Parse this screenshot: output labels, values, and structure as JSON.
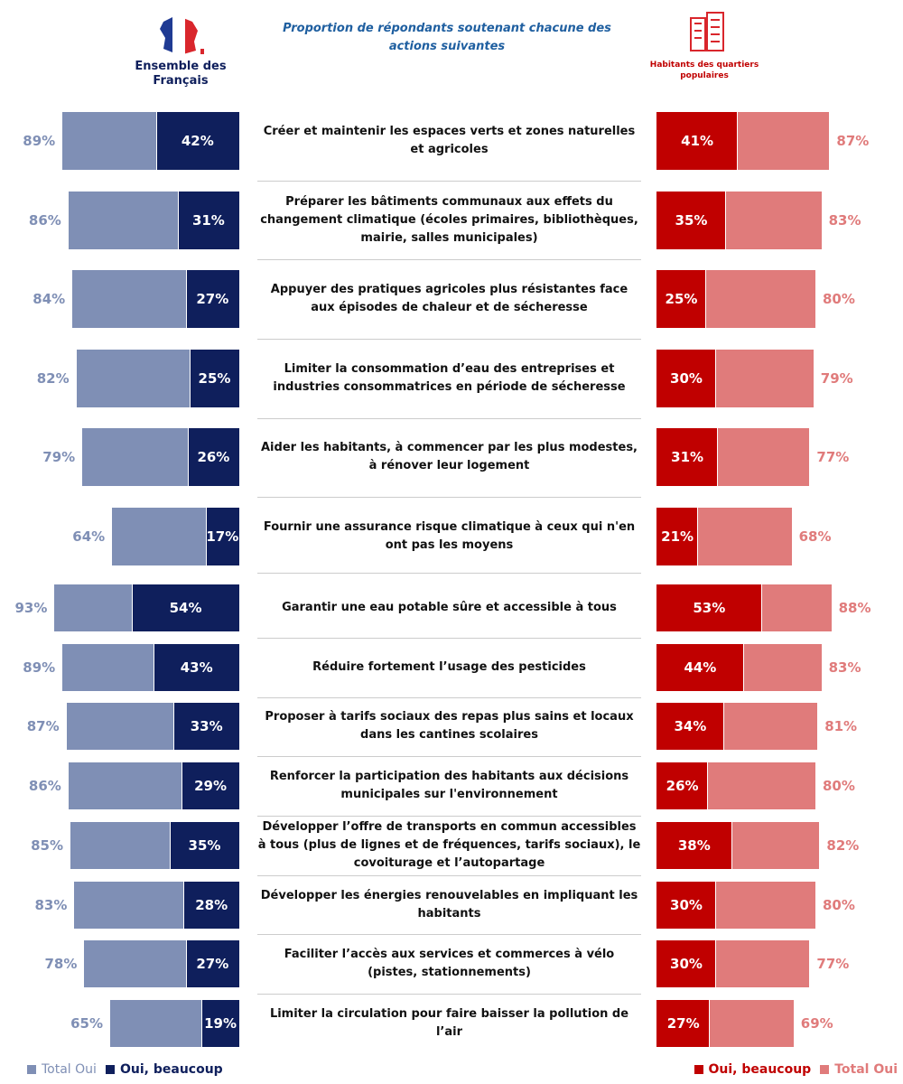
{
  "chart_data": {
    "type": "butterfly",
    "title": "Proportion de répondants soutenant chacune des actions suivantes",
    "categories": [
      "Créer et maintenir les espaces verts et zones naturelles et agricoles",
      "Préparer les bâtiments communaux aux effets du changement climatique (écoles primaires, bibliothèques, mairie, salles municipales)",
      "Appuyer des pratiques agricoles plus résistantes face aux épisodes de chaleur et de sécheresse",
      "Limiter la consommation d’eau des entreprises et industries consommatrices en période de sécheresse",
      "Aider les habitants, à commencer par les plus modestes, à rénover leur logement",
      "Fournir une assurance risque climatique à ceux qui n'en ont pas les moyens",
      "Garantir une eau potable sûre et accessible à tous",
      "Réduire fortement l’usage des pesticides",
      "Proposer à tarifs sociaux des repas plus sains et locaux dans les cantines scolaires",
      "Renforcer la participation des habitants aux décisions municipales sur l'environnement",
      "Développer l’offre de transports en commun accessibles à tous (plus de lignes et de fréquences, tarifs sociaux), le covoiturage et l’autopartage",
      "Développer les énergies renouvelables en impliquant les habitants",
      "Faciliter l’accès aux services et commerces à vélo (pistes, stationnements)",
      "Limiter la circulation pour faire baisser la pollution de l’air"
    ],
    "groups": [
      {
        "name": "Ensemble des Français",
        "side": "left",
        "series": [
          {
            "name": "Total Oui",
            "color": "#7f8fb5",
            "values": [
              89,
              86,
              84,
              82,
              79,
              64,
              93,
              89,
              87,
              86,
              85,
              83,
              78,
              65
            ],
            "value_labels": [
              "89%",
              "86%",
              "84%",
              "82%",
              "79%",
              "64%",
              "93%",
              "89%",
              "87%",
              "86%",
              "85%",
              "83%",
              "78%",
              "65%"
            ]
          },
          {
            "name": "Oui, beaucoup",
            "color": "#0f1f5c",
            "values": [
              42,
              31,
              27,
              25,
              26,
              17,
              54,
              43,
              33,
              29,
              35,
              28,
              27,
              19
            ],
            "value_labels": [
              "42%",
              "31%",
              "27%",
              "25%",
              "26%",
              "17%",
              "54%",
              "43%",
              "33%",
              "29%",
              "35%",
              "28%",
              "27%",
              "19%"
            ]
          }
        ]
      },
      {
        "name": "Habitants des quartiers populaires",
        "side": "right",
        "series": [
          {
            "name": "Oui, beaucoup",
            "color": "#c00000",
            "values": [
              41,
              35,
              25,
              30,
              31,
              21,
              53,
              44,
              34,
              26,
              38,
              30,
              30,
              27
            ],
            "value_labels": [
              "41%",
              "35%",
              "25%",
              "30%",
              "31%",
              "21%",
              "53%",
              "44%",
              "34%",
              "26%",
              "38%",
              "30%",
              "30%",
              "27%"
            ]
          },
          {
            "name": "Total Oui",
            "color": "#e07b7b",
            "values": [
              87,
              83,
              80,
              79,
              77,
              68,
              88,
              83,
              81,
              80,
              82,
              80,
              77,
              69
            ],
            "value_labels": [
              "87%",
              "83%",
              "80%",
              "79%",
              "77%",
              "68%",
              "88%",
              "83%",
              "81%",
              "80%",
              "82%",
              "80%",
              "77%",
              "69%"
            ]
          }
        ]
      }
    ]
  }
}
